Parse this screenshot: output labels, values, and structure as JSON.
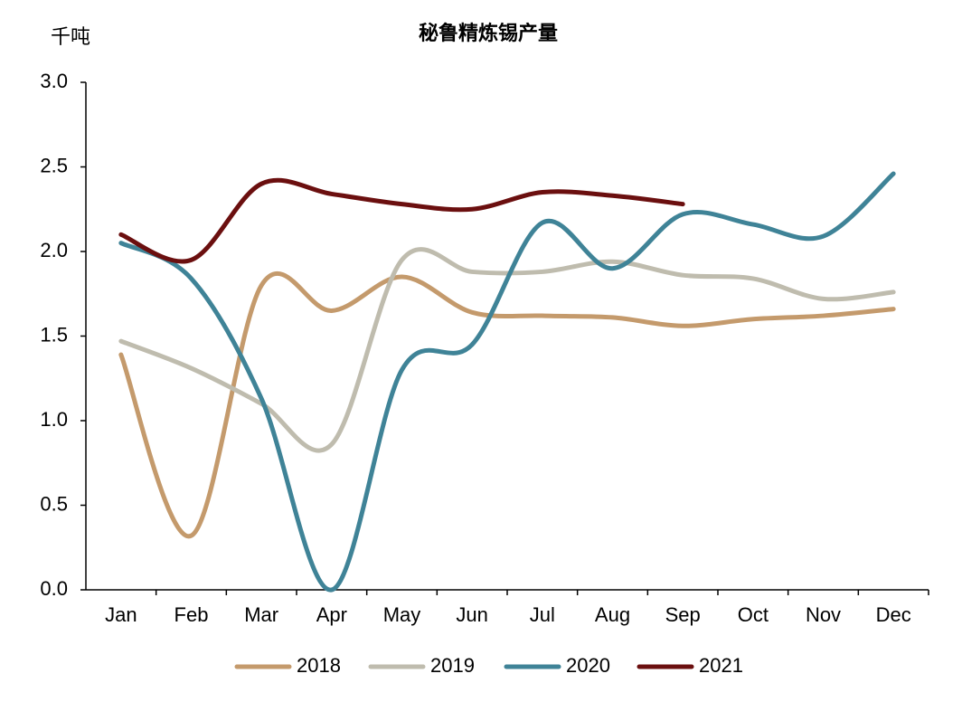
{
  "chart_data": {
    "type": "line",
    "title": "秘鲁精炼锡产量",
    "y_label": "千吨",
    "categories": [
      "Jan",
      "Feb",
      "Mar",
      "Apr",
      "May",
      "Jun",
      "Jul",
      "Aug",
      "Sep",
      "Oct",
      "Nov",
      "Dec"
    ],
    "series": [
      {
        "name": "2018",
        "color": "#c49a6c",
        "values": [
          1.39,
          0.32,
          1.8,
          1.65,
          1.85,
          1.64,
          1.62,
          1.61,
          1.56,
          1.6,
          1.62,
          1.66
        ]
      },
      {
        "name": "2019",
        "color": "#bfbcae",
        "values": [
          1.47,
          1.31,
          1.1,
          0.86,
          1.95,
          1.88,
          1.88,
          1.94,
          1.86,
          1.84,
          1.72,
          1.76
        ]
      },
      {
        "name": "2020",
        "color": "#3f8397",
        "values": [
          2.05,
          1.84,
          1.13,
          0.0,
          1.3,
          1.45,
          2.17,
          1.9,
          2.22,
          2.16,
          2.09,
          2.46
        ]
      },
      {
        "name": "2021",
        "color": "#6b0f0f",
        "values": [
          2.1,
          1.95,
          2.4,
          2.34,
          2.28,
          2.25,
          2.35,
          2.33,
          2.28,
          null,
          null,
          null
        ]
      }
    ],
    "ylim": [
      0,
      3
    ],
    "yticks": [
      {
        "value": 0,
        "label": "0.0"
      },
      0.5,
      {
        "value": 1,
        "label": "1.0"
      },
      1.5,
      {
        "value": 2,
        "label": "2.0"
      },
      2.5,
      {
        "value": 3,
        "label": "3.0"
      }
    ],
    "legend": "bottom"
  }
}
